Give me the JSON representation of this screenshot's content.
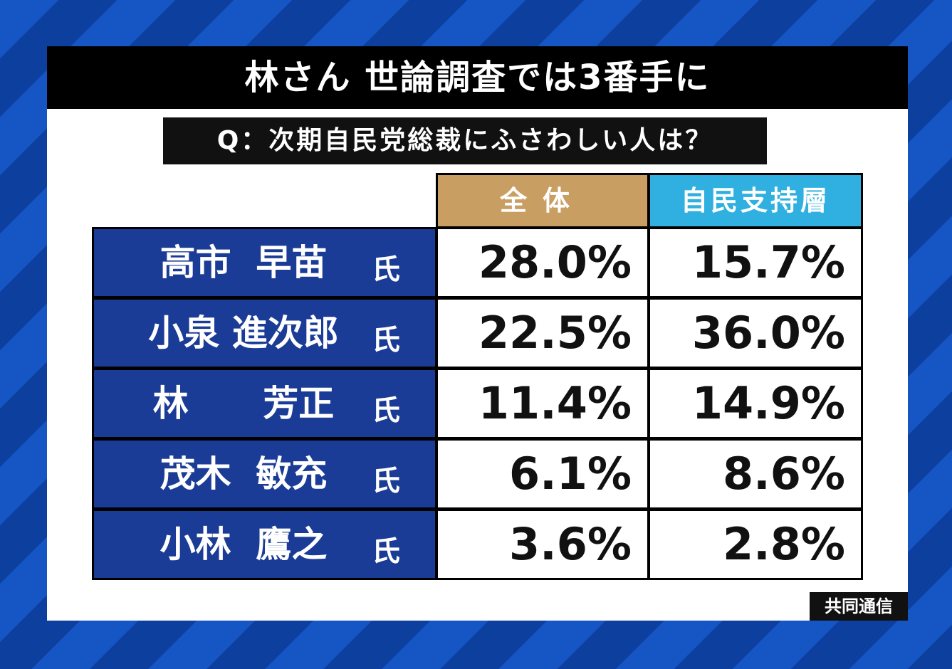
{
  "title": "林さん 世論調査では3番手に",
  "question": "Q：次期自民党総裁にふさわしい人は？",
  "columns": {
    "all": "全体",
    "ldp": "自民支持層"
  },
  "rows": [
    {
      "name": "高市  早苗",
      "suffix": "氏",
      "all": "28.0%",
      "ldp": "15.7%"
    },
    {
      "name": "小泉 進次郎",
      "suffix": "氏",
      "all": "22.5%",
      "ldp": "36.0%"
    },
    {
      "name": "林      芳正",
      "suffix": "氏",
      "all": "11.4%",
      "ldp": "14.9%"
    },
    {
      "name": "茂木  敏充",
      "suffix": "氏",
      "all": "6.1%",
      "ldp": "8.6%"
    },
    {
      "name": "小林  鷹之",
      "suffix": "氏",
      "all": "3.6%",
      "ldp": "2.8%"
    }
  ],
  "source": "共同通信",
  "colors": {
    "title_bg": "#000000",
    "header_all": "#c99e62",
    "header_ldp": "#2fb0e0",
    "name_bg": "#1b3c96",
    "background_stripe_a": "#1555c4",
    "background_stripe_b": "#0c3f9e"
  }
}
